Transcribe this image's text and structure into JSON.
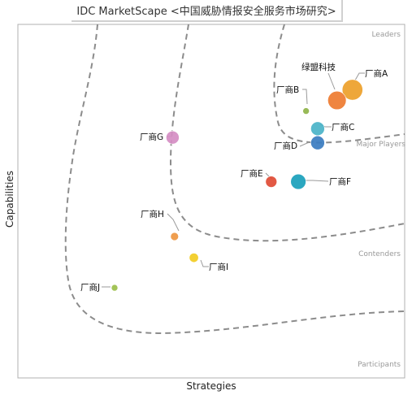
{
  "chart_data": {
    "type": "scatter",
    "title": "IDC MarketScape <中国威胁情报安全服务市场研究>",
    "xlabel": "Strategies",
    "ylabel": "Capabilities",
    "xlim": [
      0,
      100
    ],
    "ylim": [
      0,
      100
    ],
    "grid": false,
    "zones": [
      "Leaders",
      "Major Players",
      "Contenders",
      "Participants"
    ],
    "points": [
      {
        "label": "绿盟科技",
        "x": 86.5,
        "y": 81.5,
        "size": 40,
        "color": "#eea63a"
      },
      {
        "label": "厂商A",
        "x": 86.5,
        "y": 81.5,
        "size": 40,
        "color": "#eea63a"
      },
      {
        "label": "厂商B",
        "x": 74.5,
        "y": 75.5,
        "size": 4,
        "color": "#8fb449"
      },
      {
        "label": "",
        "x": 82.5,
        "y": 78.5,
        "size": 32,
        "color": "#ee7b30"
      },
      {
        "label": "厂商C",
        "x": 77.5,
        "y": 70.5,
        "size": 18,
        "color": "#4ab3c8"
      },
      {
        "label": "厂商D",
        "x": 77.5,
        "y": 66.5,
        "size": 18,
        "color": "#3a7cc0"
      },
      {
        "label": "厂商E",
        "x": 65.5,
        "y": 55.5,
        "size": 12,
        "color": "#e04b34"
      },
      {
        "label": "厂商F",
        "x": 72.5,
        "y": 55.5,
        "size": 22,
        "color": "#199fbb"
      },
      {
        "label": "厂商G",
        "x": 40.0,
        "y": 68.0,
        "size": 16,
        "color": "#d58dc3"
      },
      {
        "label": "厂商H",
        "x": 40.5,
        "y": 40.0,
        "size": 6,
        "color": "#ee9640"
      },
      {
        "label": "厂商I",
        "x": 45.5,
        "y": 34.0,
        "size": 8,
        "color": "#f2cc22"
      },
      {
        "label": "厂商J",
        "x": 25.0,
        "y": 25.5,
        "size": 4,
        "color": "#9bbf4a"
      }
    ]
  }
}
